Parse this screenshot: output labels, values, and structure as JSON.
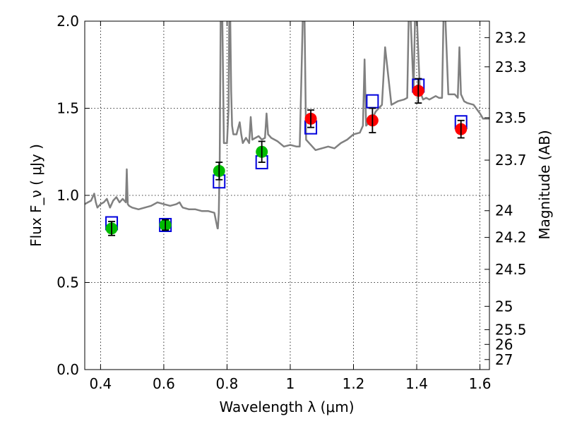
{
  "chart_data": {
    "type": "scatter",
    "xlabel": "Wavelength λ (μm)",
    "ylabel": "Flux F_ν ( μJy )",
    "ylabel_right": "Magnitude (AB)",
    "xlim": [
      0.35,
      1.63
    ],
    "ylim": [
      0,
      2.0
    ],
    "x_ticks": [
      0.4,
      0.6,
      0.8,
      1.0,
      1.2,
      1.4,
      1.6
    ],
    "x_tick_labels": [
      "0.4",
      "0.6",
      "0.8",
      "1",
      "1.2",
      "1.4",
      "1.6"
    ],
    "y_ticks": [
      0.0,
      0.5,
      1.0,
      1.5,
      2.0
    ],
    "y_tick_labels": [
      "0.0",
      "0.5",
      "1.0",
      "1.5",
      "2.0"
    ],
    "right_ticks": [
      {
        "label": "23.2",
        "value": 23.2
      },
      {
        "label": "23.3",
        "value": 23.3
      },
      {
        "label": "23.5",
        "value": 23.5
      },
      {
        "label": "23.7",
        "value": 23.7
      },
      {
        "label": "24",
        "value": 24.0
      },
      {
        "label": "24.2",
        "value": 24.2
      },
      {
        "label": "24.5",
        "value": 24.5
      },
      {
        "label": "25",
        "value": 25.0
      },
      {
        "label": "25.5",
        "value": 25.5
      },
      {
        "label": "26",
        "value": 26.0
      },
      {
        "label": "27",
        "value": 27.0
      }
    ],
    "grid": true,
    "colors": {
      "spectrum": "#808080",
      "model": "#0000dd",
      "optical": "#00bb00",
      "nir": "#ff0000",
      "error": "#000000"
    },
    "spectrum": {
      "x": [
        0.35,
        0.36,
        0.37,
        0.38,
        0.385,
        0.39,
        0.4,
        0.41,
        0.42,
        0.43,
        0.44,
        0.45,
        0.46,
        0.47,
        0.48,
        0.483,
        0.486,
        0.49,
        0.5,
        0.52,
        0.54,
        0.56,
        0.58,
        0.6,
        0.62,
        0.64,
        0.65,
        0.656,
        0.66,
        0.68,
        0.7,
        0.72,
        0.74,
        0.76,
        0.77,
        0.771,
        0.774,
        0.777,
        0.78,
        0.785,
        0.79,
        0.8,
        0.805,
        0.807,
        0.81,
        0.813,
        0.816,
        0.82,
        0.83,
        0.84,
        0.845,
        0.85,
        0.86,
        0.87,
        0.875,
        0.88,
        0.89,
        0.9,
        0.91,
        0.92,
        0.925,
        0.93,
        0.94,
        0.96,
        0.98,
        1.0,
        1.02,
        1.03,
        1.035,
        1.04,
        1.045,
        1.05,
        1.06,
        1.08,
        1.1,
        1.12,
        1.14,
        1.16,
        1.18,
        1.2,
        1.22,
        1.23,
        1.235,
        1.24,
        1.25,
        1.26,
        1.27,
        1.28,
        1.29,
        1.3,
        1.32,
        1.34,
        1.36,
        1.37,
        1.375,
        1.38,
        1.39,
        1.395,
        1.4,
        1.41,
        1.42,
        1.43,
        1.44,
        1.45,
        1.46,
        1.47,
        1.48,
        1.485,
        1.49,
        1.5,
        1.52,
        1.53,
        1.535,
        1.54,
        1.55,
        1.56,
        1.58,
        1.6,
        1.61,
        1.62,
        1.63
      ],
      "y": [
        0.95,
        0.96,
        0.97,
        1.01,
        0.96,
        0.93,
        0.95,
        0.96,
        0.98,
        0.93,
        0.97,
        0.99,
        0.96,
        0.98,
        0.96,
        1.15,
        0.95,
        0.94,
        0.93,
        0.92,
        0.93,
        0.94,
        0.96,
        0.95,
        0.94,
        0.95,
        0.96,
        0.94,
        0.93,
        0.92,
        0.92,
        0.91,
        0.91,
        0.9,
        0.81,
        0.81,
        0.9,
        1.2,
        2.05,
        2.05,
        1.3,
        1.3,
        1.5,
        2.05,
        2.05,
        1.6,
        1.4,
        1.35,
        1.35,
        1.42,
        1.35,
        1.3,
        1.33,
        1.3,
        1.45,
        1.32,
        1.33,
        1.34,
        1.32,
        1.33,
        1.47,
        1.35,
        1.33,
        1.31,
        1.28,
        1.29,
        1.28,
        1.28,
        1.65,
        2.05,
        2.05,
        1.32,
        1.3,
        1.26,
        1.27,
        1.28,
        1.27,
        1.3,
        1.32,
        1.35,
        1.36,
        1.4,
        1.78,
        1.4,
        1.42,
        1.44,
        1.48,
        1.5,
        1.52,
        1.85,
        1.52,
        1.54,
        1.55,
        1.56,
        2.05,
        2.05,
        1.6,
        2.05,
        2.05,
        1.6,
        1.55,
        1.56,
        1.55,
        1.56,
        1.57,
        1.56,
        1.56,
        2.05,
        2.05,
        1.58,
        1.58,
        1.56,
        1.85,
        1.58,
        1.54,
        1.53,
        1.52,
        1.47,
        1.44,
        1.44,
        1.44
      ]
    },
    "series": [
      {
        "x": [
          0.435,
          0.605,
          0.775,
          0.91,
          1.065,
          1.26,
          1.405,
          1.54
        ],
        "values": [
          0.84,
          0.83,
          1.08,
          1.19,
          1.39,
          1.54,
          1.63,
          1.42
        ]
      },
      {
        "x": [
          0.435,
          0.605,
          0.775,
          0.91
        ],
        "values": [
          0.81,
          0.83,
          1.14,
          1.25
        ],
        "errors": [
          0.04,
          0.03,
          0.05,
          0.06
        ]
      },
      {
        "x": [
          1.065,
          1.26,
          1.405,
          1.54
        ],
        "values": [
          1.44,
          1.43,
          1.6,
          1.38
        ],
        "errors": [
          0.05,
          0.07,
          0.07,
          0.05
        ]
      }
    ]
  }
}
